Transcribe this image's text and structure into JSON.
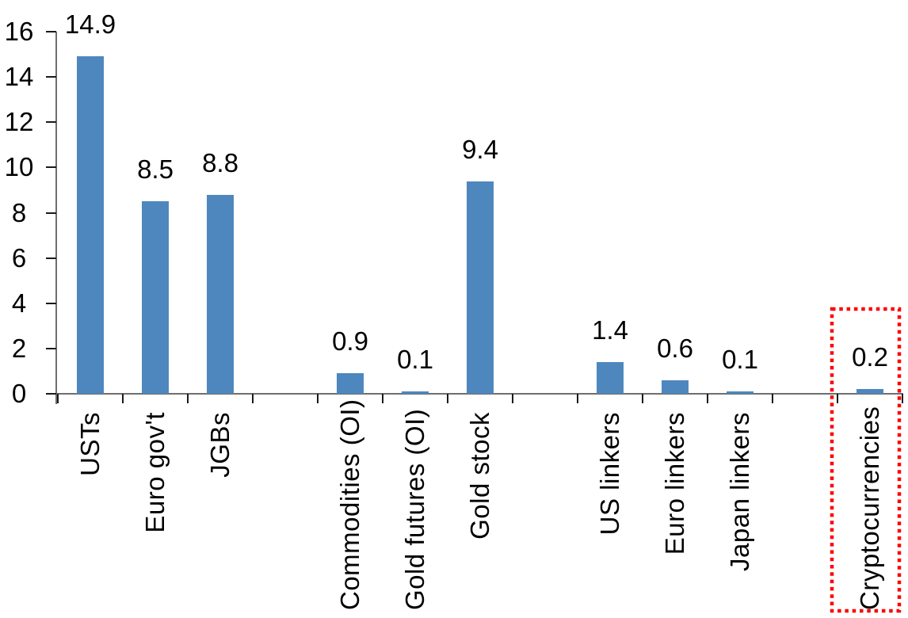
{
  "page": {
    "background_color": "#FFFFFF"
  },
  "chart_data": {
    "type": "bar",
    "title": "",
    "xlabel": "",
    "ylabel": "",
    "ylim": [
      0,
      16
    ],
    "ytick_step": 2,
    "yticks": [
      0,
      2,
      4,
      6,
      8,
      10,
      12,
      14,
      16
    ],
    "ytick_labels": [
      "0",
      "2",
      "4",
      "6",
      "8",
      "10",
      "12",
      "14",
      "16"
    ],
    "grid": false,
    "legend": null,
    "bar_color": "#4E87BD",
    "axis_color": "#6E6E6E",
    "tick_color": "#1A1A1A",
    "text_color": "#000000",
    "categories": [
      "USTs",
      "Euro gov't",
      "JGBs",
      "Commodities (OI)",
      "Gold futures (OI)",
      "Gold stock",
      "US linkers",
      "Euro linkers",
      "Japan linkers",
      "Cryptocurrencies"
    ],
    "values": [
      14.9,
      8.5,
      8.8,
      0.9,
      0.1,
      9.4,
      1.4,
      0.6,
      0.1,
      0.2
    ],
    "value_labels": [
      "14.9",
      "8.5",
      "8.8",
      "0.9",
      "0.1",
      "9.4",
      "1.4",
      "0.6",
      "0.1",
      "0.2"
    ],
    "slots": [
      {
        "label": "USTs",
        "value": 14.9,
        "value_label": "14.9"
      },
      {
        "label": "Euro gov't",
        "value": 8.5,
        "value_label": "8.5"
      },
      {
        "label": "JGBs",
        "value": 8.8,
        "value_label": "8.8"
      },
      {
        "label": "",
        "value": null,
        "value_label": ""
      },
      {
        "label": "Commodities (OI)",
        "value": 0.9,
        "value_label": "0.9"
      },
      {
        "label": "Gold futures (OI)",
        "value": 0.1,
        "value_label": "0.1"
      },
      {
        "label": "Gold stock",
        "value": 9.4,
        "value_label": "9.4"
      },
      {
        "label": "",
        "value": null,
        "value_label": ""
      },
      {
        "label": "US linkers",
        "value": 1.4,
        "value_label": "1.4"
      },
      {
        "label": "Euro linkers",
        "value": 0.6,
        "value_label": "0.6"
      },
      {
        "label": "Japan linkers",
        "value": 0.1,
        "value_label": "0.1"
      },
      {
        "label": "",
        "value": null,
        "value_label": ""
      },
      {
        "label": "Cryptocurrencies",
        "value": 0.2,
        "value_label": "0.2"
      }
    ],
    "highlight": {
      "category": "Cryptocurrencies",
      "box_color": "#FF0000",
      "box_style": "dotted"
    }
  }
}
